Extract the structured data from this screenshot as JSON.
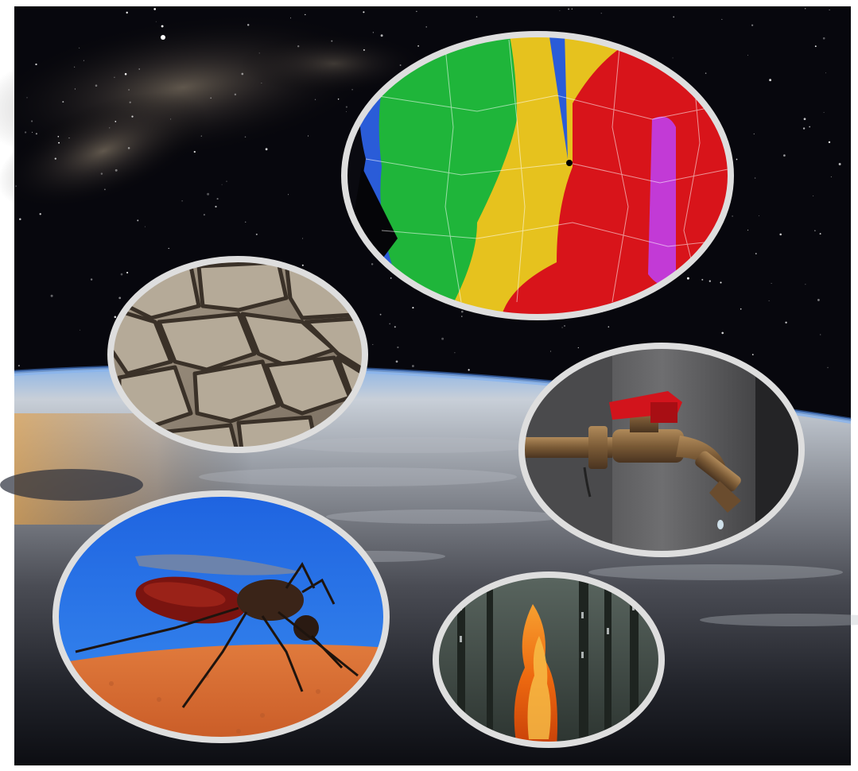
{
  "image": {
    "subject": "collage",
    "background": "space-view-of-earth",
    "vignettes": [
      {
        "subject": "weather-radar-map"
      },
      {
        "subject": "cracked-dry-soil"
      },
      {
        "subject": "dripping-water-faucet"
      },
      {
        "subject": "mosquito-on-skin"
      },
      {
        "subject": "forest-fire"
      }
    ]
  },
  "colors": {
    "frame": "#dedede",
    "space": "#07070d",
    "atmosphere": "#6f9fd8",
    "radar_green": "#1fb53a",
    "radar_yellow": "#e6c21e",
    "radar_red": "#d8141a",
    "radar_magenta": "#c23ad6",
    "sky_blue": "#1f6fe8",
    "skin": "#d9703a",
    "faucet_handle": "#d2141c",
    "fire": "#f07a14"
  }
}
